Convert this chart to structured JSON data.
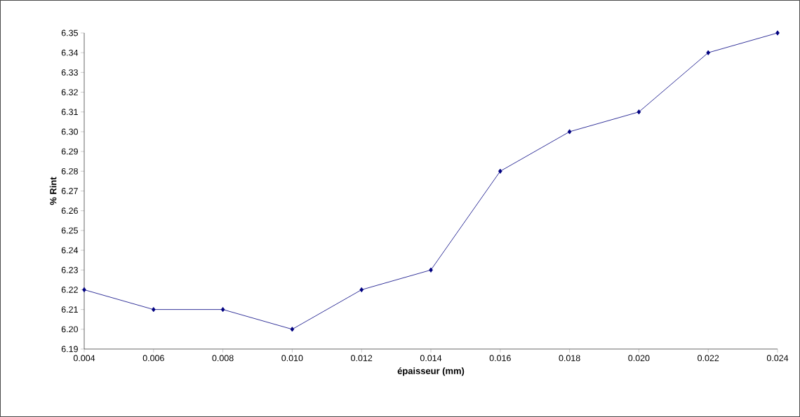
{
  "chart_data": {
    "type": "line",
    "xlabel": "**épaisseur (mm)**",
    "ylabel": "**% Rint**",
    "x": [
      0.004,
      0.006,
      0.008,
      0.01,
      0.012,
      0.014,
      0.016,
      0.018,
      0.02,
      0.022,
      0.024
    ],
    "series": [
      {
        "color": "#000080",
        "values": [
          6.22,
          6.21,
          6.21,
          6.2,
          6.22,
          6.23,
          6.28,
          6.3,
          6.31,
          6.34,
          6.35
        ]
      }
    ],
    "xlim": [
      0.004,
      0.024
    ],
    "xticks": [
      {
        "value": 0.004,
        "label": "0.004"
      },
      {
        "value": 0.006,
        "label": "0.006"
      },
      {
        "value": 0.008,
        "label": "0.008"
      },
      {
        "value": 0.01,
        "label": "0.010"
      },
      {
        "value": 0.012,
        "label": "0.012"
      },
      {
        "value": 0.014,
        "label": "0.014"
      },
      {
        "value": 0.016,
        "label": "0.016"
      },
      {
        "value": 0.018,
        "label": "0.018"
      },
      {
        "value": 0.02,
        "label": "0.020"
      },
      {
        "value": 0.022,
        "label": "0.022"
      },
      {
        "value": 0.024,
        "label": "0.024"
      }
    ],
    "ylim": [
      6.19,
      6.35
    ],
    "yticks": [
      {
        "value": 6.19,
        "label": "6.19"
      },
      {
        "value": 6.2,
        "label": "6.20"
      },
      {
        "value": 6.21,
        "label": "6.21"
      },
      {
        "value": 6.22,
        "label": "6.22"
      },
      {
        "value": 6.23,
        "label": "6.23"
      },
      {
        "value": 6.24,
        "label": "6.24"
      },
      {
        "value": 6.25,
        "label": "6.25"
      },
      {
        "value": 6.26,
        "label": "6.26"
      },
      {
        "value": 6.27,
        "label": "6.27"
      },
      {
        "value": 6.28,
        "label": "6.28"
      },
      {
        "value": 6.29,
        "label": "6.29"
      },
      {
        "value": 6.3,
        "label": "6.30"
      },
      {
        "value": 6.31,
        "label": "6.31"
      },
      {
        "value": 6.32,
        "label": "6.32"
      },
      {
        "value": 6.33,
        "label": "6.33"
      },
      {
        "value": 6.34,
        "label": "6.34"
      },
      {
        "value": 6.35,
        "label": "6.35"
      }
    ],
    "grid": false,
    "marker": "diamond",
    "line_style": "solid"
  }
}
